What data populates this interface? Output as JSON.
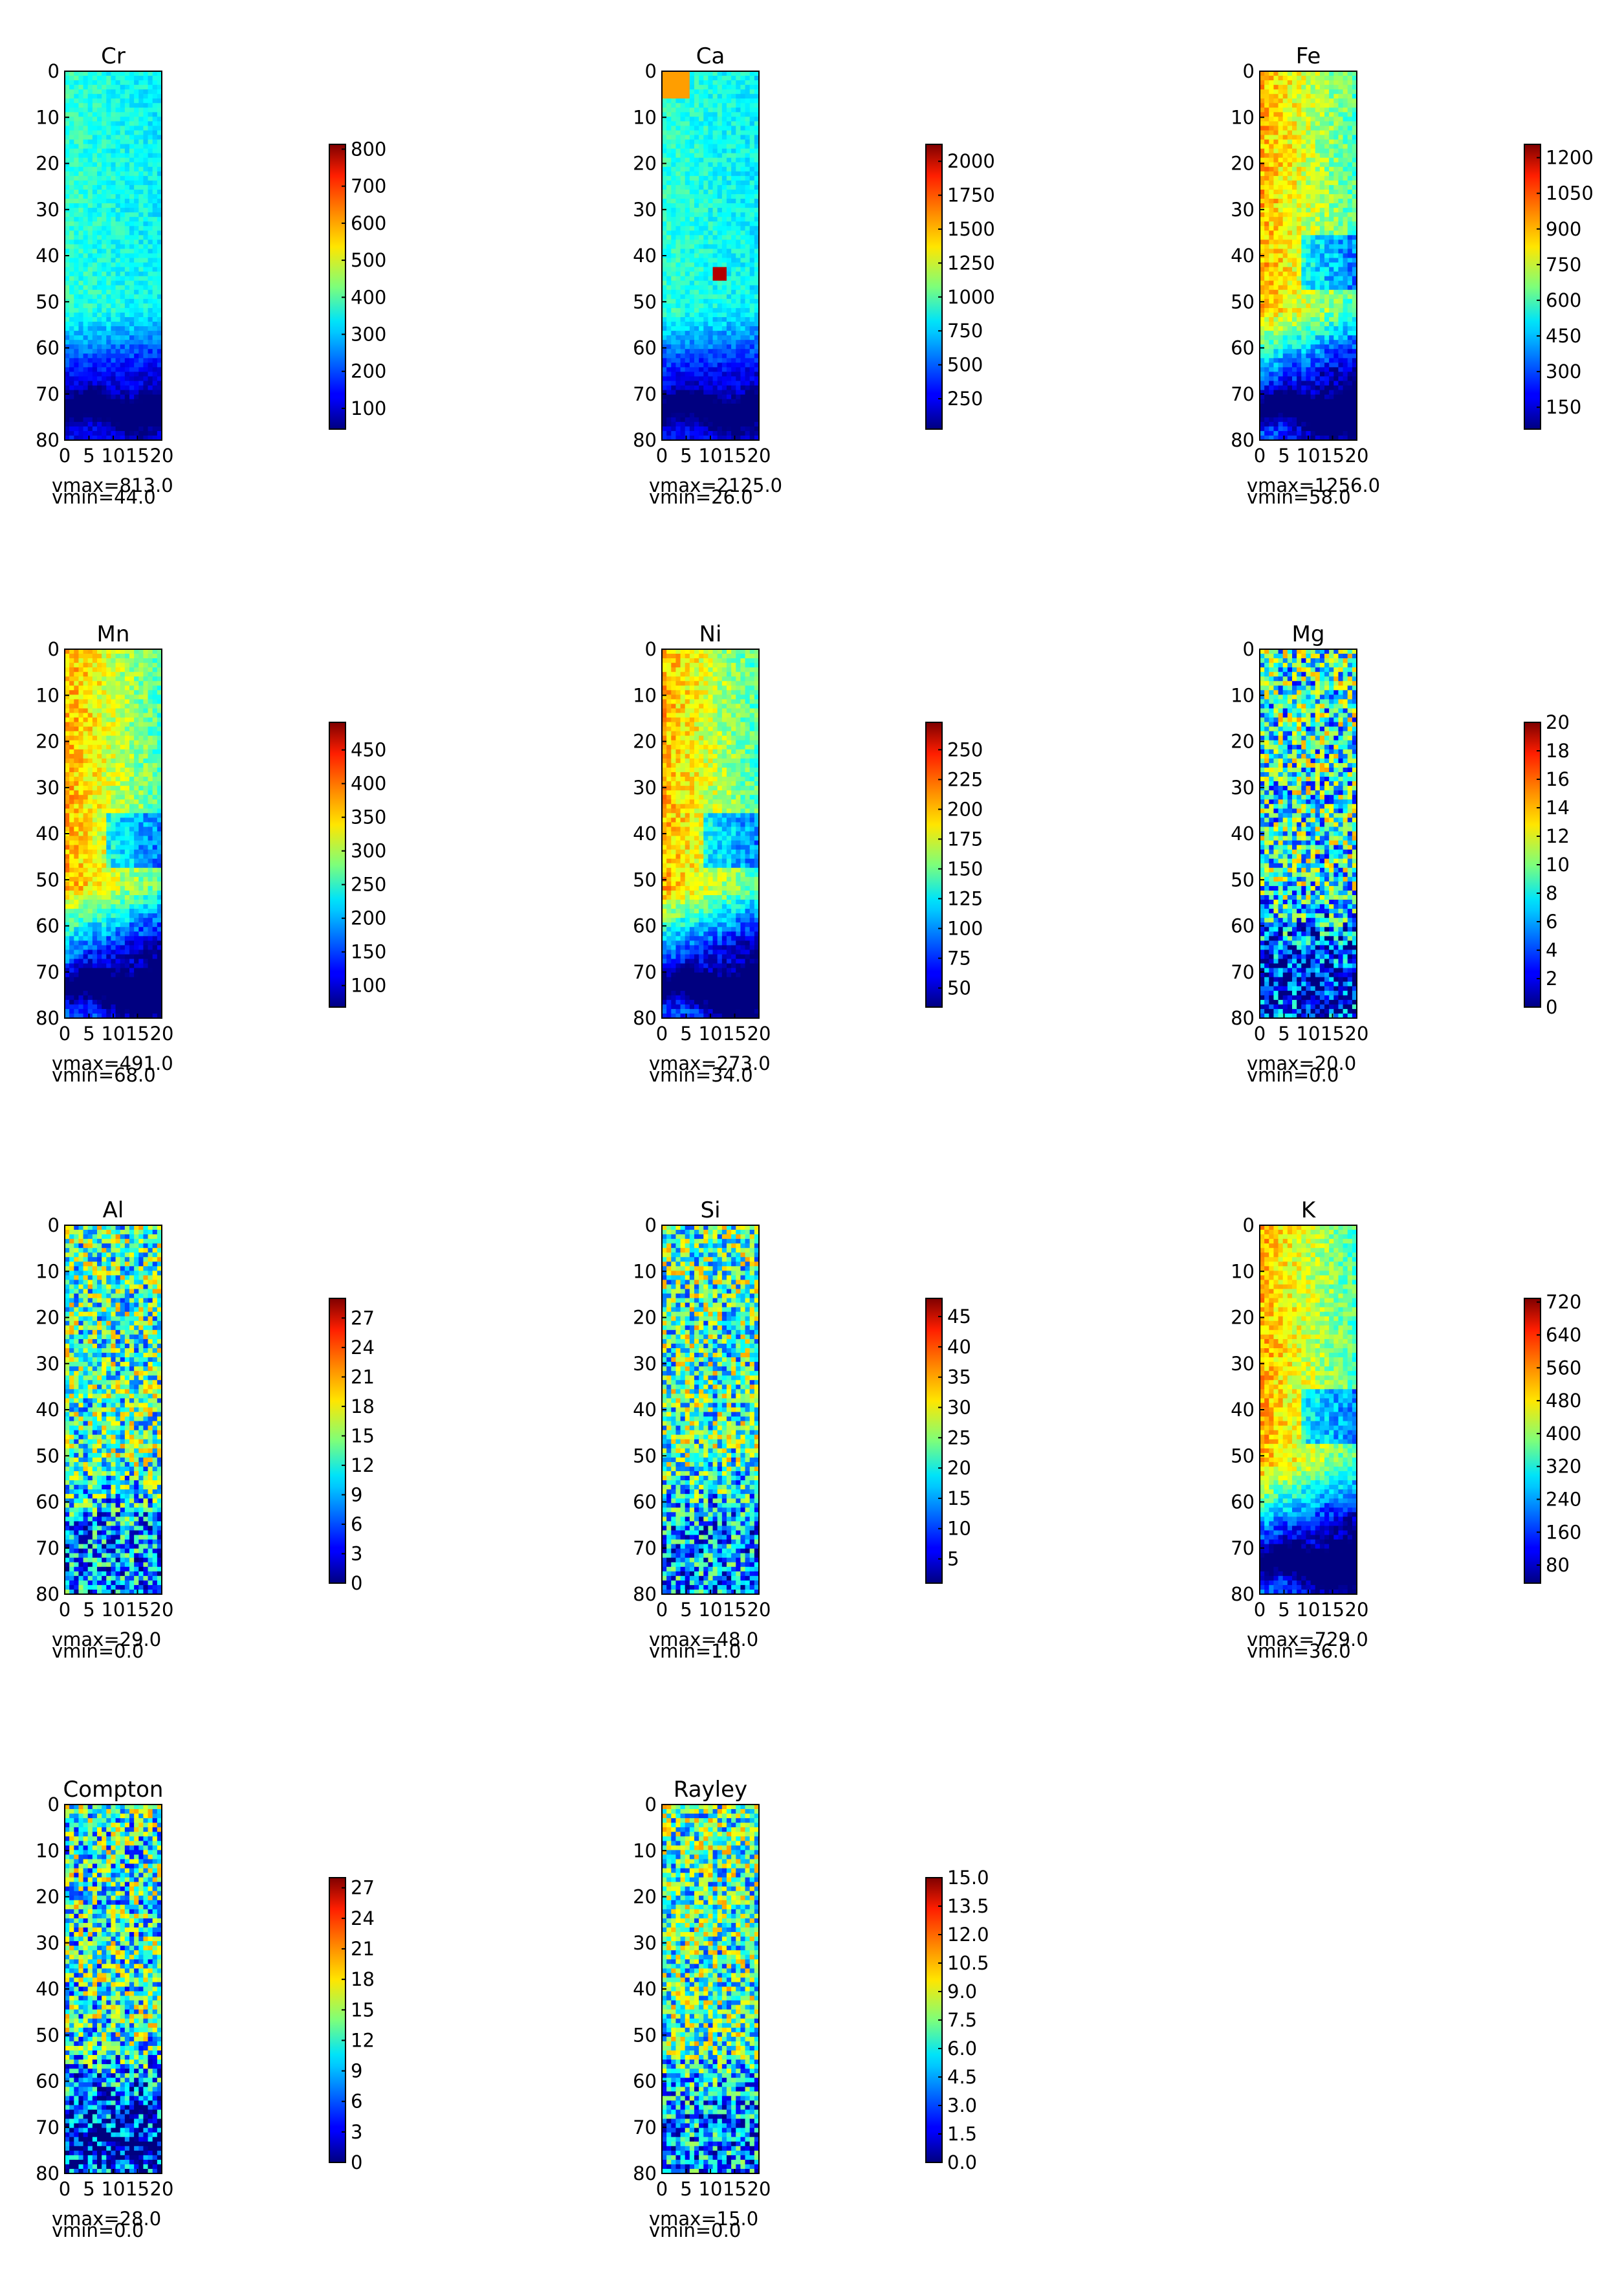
{
  "chart_data": [
    {
      "type": "heatmap",
      "title": "Cr",
      "xlim": [
        0,
        20
      ],
      "ylim": [
        80,
        0
      ],
      "xticks": [
        "0",
        "5",
        "10",
        "15",
        "20"
      ],
      "yticks": [
        "0",
        "10",
        "20",
        "30",
        "40",
        "50",
        "60",
        "70",
        "80"
      ],
      "colorbar_ticks": [
        "100",
        "200",
        "300",
        "400",
        "500",
        "600",
        "700",
        "800"
      ],
      "vmin": 44.0,
      "vmax": 813.0,
      "vmin_text": "vmin=44.0",
      "vmax_text": "vmax=813.0",
      "colormap": "jet"
    },
    {
      "type": "heatmap",
      "title": "Ca",
      "xlim": [
        0,
        20
      ],
      "ylim": [
        80,
        0
      ],
      "xticks": [
        "0",
        "5",
        "10",
        "15",
        "20"
      ],
      "yticks": [
        "0",
        "10",
        "20",
        "30",
        "40",
        "50",
        "60",
        "70",
        "80"
      ],
      "colorbar_ticks": [
        "250",
        "500",
        "750",
        "1000",
        "1250",
        "1500",
        "1750",
        "2000"
      ],
      "vmin": 26.0,
      "vmax": 2125.0,
      "vmin_text": "vmin=26.0",
      "vmax_text": "vmax=2125.0",
      "colormap": "jet"
    },
    {
      "type": "heatmap",
      "title": "Fe",
      "xlim": [
        0,
        20
      ],
      "ylim": [
        80,
        0
      ],
      "xticks": [
        "0",
        "5",
        "10",
        "15",
        "20"
      ],
      "yticks": [
        "0",
        "10",
        "20",
        "30",
        "40",
        "50",
        "60",
        "70",
        "80"
      ],
      "colorbar_ticks": [
        "150",
        "300",
        "450",
        "600",
        "750",
        "900",
        "1050",
        "1200"
      ],
      "vmin": 58.0,
      "vmax": 1256.0,
      "vmin_text": "vmin=58.0",
      "vmax_text": "vmax=1256.0",
      "colormap": "jet"
    },
    {
      "type": "heatmap",
      "title": "Mn",
      "xlim": [
        0,
        20
      ],
      "ylim": [
        80,
        0
      ],
      "xticks": [
        "0",
        "5",
        "10",
        "15",
        "20"
      ],
      "yticks": [
        "0",
        "10",
        "20",
        "30",
        "40",
        "50",
        "60",
        "70",
        "80"
      ],
      "colorbar_ticks": [
        "100",
        "150",
        "200",
        "250",
        "300",
        "350",
        "400",
        "450"
      ],
      "vmin": 68.0,
      "vmax": 491.0,
      "vmin_text": "vmin=68.0",
      "vmax_text": "vmax=491.0",
      "colormap": "jet"
    },
    {
      "type": "heatmap",
      "title": "Ni",
      "xlim": [
        0,
        20
      ],
      "ylim": [
        80,
        0
      ],
      "xticks": [
        "0",
        "5",
        "10",
        "15",
        "20"
      ],
      "yticks": [
        "0",
        "10",
        "20",
        "30",
        "40",
        "50",
        "60",
        "70",
        "80"
      ],
      "colorbar_ticks": [
        "50",
        "75",
        "100",
        "125",
        "150",
        "175",
        "200",
        "225",
        "250"
      ],
      "vmin": 34.0,
      "vmax": 273.0,
      "vmin_text": "vmin=34.0",
      "vmax_text": "vmax=273.0",
      "colormap": "jet"
    },
    {
      "type": "heatmap",
      "title": "Mg",
      "xlim": [
        0,
        20
      ],
      "ylim": [
        80,
        0
      ],
      "xticks": [
        "0",
        "5",
        "10",
        "15",
        "20"
      ],
      "yticks": [
        "0",
        "10",
        "20",
        "30",
        "40",
        "50",
        "60",
        "70",
        "80"
      ],
      "colorbar_ticks": [
        "0",
        "2",
        "4",
        "6",
        "8",
        "10",
        "12",
        "14",
        "16",
        "18",
        "20"
      ],
      "vmin": 0.0,
      "vmax": 20.0,
      "vmin_text": "vmin=0.0",
      "vmax_text": "vmax=20.0",
      "colormap": "jet"
    },
    {
      "type": "heatmap",
      "title": "Al",
      "xlim": [
        0,
        20
      ],
      "ylim": [
        80,
        0
      ],
      "xticks": [
        "0",
        "5",
        "10",
        "15",
        "20"
      ],
      "yticks": [
        "0",
        "10",
        "20",
        "30",
        "40",
        "50",
        "60",
        "70",
        "80"
      ],
      "colorbar_ticks": [
        "0",
        "3",
        "6",
        "9",
        "12",
        "15",
        "18",
        "21",
        "24",
        "27"
      ],
      "vmin": 0.0,
      "vmax": 29.0,
      "vmin_text": "vmin=0.0",
      "vmax_text": "vmax=29.0",
      "colormap": "jet"
    },
    {
      "type": "heatmap",
      "title": "Si",
      "xlim": [
        0,
        20
      ],
      "ylim": [
        80,
        0
      ],
      "xticks": [
        "0",
        "5",
        "10",
        "15",
        "20"
      ],
      "yticks": [
        "0",
        "10",
        "20",
        "30",
        "40",
        "50",
        "60",
        "70",
        "80"
      ],
      "colorbar_ticks": [
        "5",
        "10",
        "15",
        "20",
        "25",
        "30",
        "35",
        "40",
        "45"
      ],
      "vmin": 1.0,
      "vmax": 48.0,
      "vmin_text": "vmin=1.0",
      "vmax_text": "vmax=48.0",
      "colormap": "jet"
    },
    {
      "type": "heatmap",
      "title": "K",
      "xlim": [
        0,
        20
      ],
      "ylim": [
        80,
        0
      ],
      "xticks": [
        "0",
        "5",
        "10",
        "15",
        "20"
      ],
      "yticks": [
        "0",
        "10",
        "20",
        "30",
        "40",
        "50",
        "60",
        "70",
        "80"
      ],
      "colorbar_ticks": [
        "80",
        "160",
        "240",
        "320",
        "400",
        "480",
        "560",
        "640",
        "720"
      ],
      "vmin": 36.0,
      "vmax": 729.0,
      "vmin_text": "vmin=36.0",
      "vmax_text": "vmax=729.0",
      "colormap": "jet"
    },
    {
      "type": "heatmap",
      "title": "Compton",
      "xlim": [
        0,
        20
      ],
      "ylim": [
        80,
        0
      ],
      "xticks": [
        "0",
        "5",
        "10",
        "15",
        "20"
      ],
      "yticks": [
        "0",
        "10",
        "20",
        "30",
        "40",
        "50",
        "60",
        "70",
        "80"
      ],
      "colorbar_ticks": [
        "0",
        "3",
        "6",
        "9",
        "12",
        "15",
        "18",
        "21",
        "24",
        "27"
      ],
      "vmin": 0.0,
      "vmax": 28.0,
      "vmin_text": "vmin=0.0",
      "vmax_text": "vmax=28.0",
      "colormap": "jet"
    },
    {
      "type": "heatmap",
      "title": "Rayley",
      "xlim": [
        0,
        20
      ],
      "ylim": [
        80,
        0
      ],
      "xticks": [
        "0",
        "5",
        "10",
        "15",
        "20"
      ],
      "yticks": [
        "0",
        "10",
        "20",
        "30",
        "40",
        "50",
        "60",
        "70",
        "80"
      ],
      "colorbar_ticks": [
        "0.0",
        "1.5",
        "3.0",
        "4.5",
        "6.0",
        "7.5",
        "9.0",
        "10.5",
        "12.0",
        "13.5",
        "15.0"
      ],
      "vmin": 0.0,
      "vmax": 15.0,
      "vmin_text": "vmin=0.0",
      "vmax_text": "vmax=15.0",
      "colormap": "jet"
    }
  ]
}
